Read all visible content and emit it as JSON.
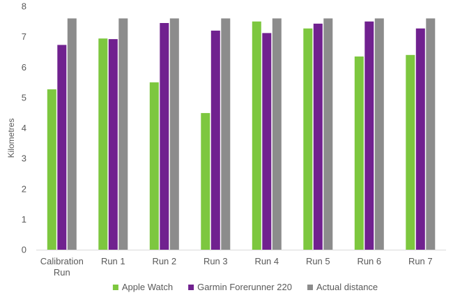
{
  "chart_data": {
    "type": "bar",
    "title": "",
    "xlabel": "",
    "ylabel": "Kilometres",
    "ylim": [
      0,
      8
    ],
    "yticks": [
      "0",
      "1",
      "2",
      "3",
      "4",
      "5",
      "6",
      "7",
      "8"
    ],
    "grid": false,
    "legend_position": "bottom",
    "categories": [
      [
        "Calibration",
        "Run"
      ],
      [
        "Run 1"
      ],
      [
        "Run 2"
      ],
      [
        "Run 3"
      ],
      [
        "Run 4"
      ],
      [
        "Run 5"
      ],
      [
        "Run 6"
      ],
      [
        "Run 7"
      ]
    ],
    "series": [
      {
        "name": "Apple Watch",
        "color": "#7dc73f",
        "values": [
          5.27,
          6.94,
          5.5,
          4.49,
          7.5,
          7.27,
          6.35,
          6.4
        ]
      },
      {
        "name": "Garmin Forerunner 220",
        "color": "#70218f",
        "values": [
          6.73,
          6.92,
          7.45,
          7.2,
          7.12,
          7.43,
          7.5,
          7.27
        ]
      },
      {
        "name": "Actual distance",
        "color": "#8c8c8c",
        "values": [
          7.6,
          7.6,
          7.6,
          7.6,
          7.6,
          7.6,
          7.6,
          7.6
        ]
      }
    ]
  }
}
